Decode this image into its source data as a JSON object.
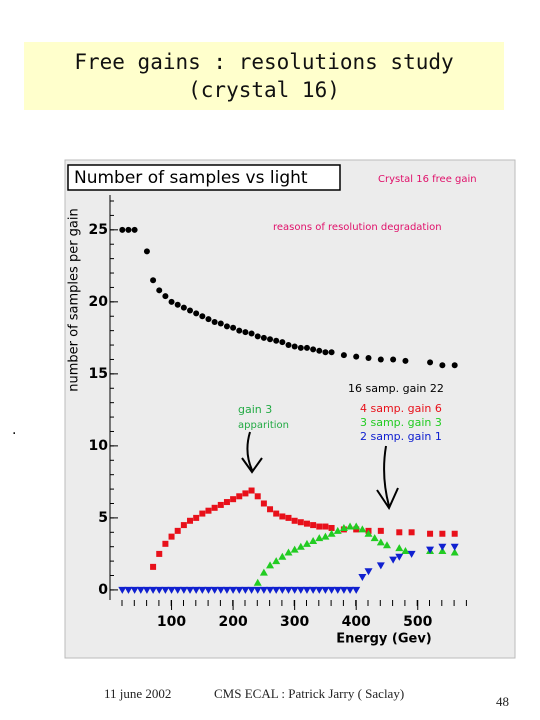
{
  "slide": {
    "title": [
      "Free gains : resolutions study",
      "(crystal 16)"
    ],
    "footer": {
      "date": "11 june 2002",
      "author": "CMS ECAL : Patrick Jarry ( Saclay)",
      "page": "48"
    }
  },
  "chart_data": {
    "type": "scatter",
    "title": "Number of samples vs light",
    "subtitle": "Crystal 16  free gain",
    "note": "reasons of resolution degradation",
    "annotations": [
      "gain 3",
      "apparition"
    ],
    "x_label": "Energy (Gev)",
    "y_label": "number of samples per gain",
    "xlim": [
      0,
      580
    ],
    "ylim": [
      -0.7,
      29.5
    ],
    "xticks": [
      100,
      200,
      300,
      400,
      500
    ],
    "yticks": [
      0,
      5,
      10,
      15,
      20,
      25
    ],
    "series": [
      {
        "name": "16  samp.  gain  22",
        "color": "#000000",
        "marker": "circle",
        "x": [
          20,
          30,
          40,
          60,
          70,
          80,
          90,
          100,
          110,
          120,
          130,
          140,
          150,
          160,
          170,
          180,
          190,
          200,
          210,
          220,
          230,
          240,
          250,
          260,
          270,
          280,
          290,
          300,
          310,
          320,
          330,
          340,
          350,
          360,
          380,
          400,
          420,
          440,
          460,
          480,
          520,
          540,
          560
        ],
        "values": [
          25,
          25,
          25,
          23.5,
          21.5,
          20.8,
          20.4,
          20.0,
          19.8,
          19.6,
          19.4,
          19.2,
          19.0,
          18.8,
          18.6,
          18.5,
          18.3,
          18.2,
          18.0,
          17.9,
          17.8,
          17.6,
          17.5,
          17.4,
          17.3,
          17.2,
          17.0,
          16.9,
          16.8,
          16.8,
          16.7,
          16.6,
          16.5,
          16.5,
          16.3,
          16.2,
          16.1,
          16.0,
          16.0,
          15.9,
          15.8,
          15.6,
          15.6
        ]
      },
      {
        "name": "4  samp.  gain  6",
        "color": "#e8101a",
        "marker": "square",
        "x": [
          70,
          80,
          90,
          100,
          110,
          120,
          130,
          140,
          150,
          160,
          170,
          180,
          190,
          200,
          210,
          220,
          230,
          240,
          250,
          260,
          270,
          280,
          290,
          300,
          310,
          320,
          330,
          340,
          350,
          360,
          380,
          400,
          420,
          440,
          470,
          490,
          520,
          540,
          560
        ],
        "values": [
          1.6,
          2.5,
          3.2,
          3.7,
          4.1,
          4.5,
          4.8,
          5.0,
          5.3,
          5.5,
          5.7,
          5.9,
          6.1,
          6.3,
          6.5,
          6.7,
          6.9,
          6.5,
          6.0,
          5.6,
          5.3,
          5.1,
          5.0,
          4.8,
          4.7,
          4.6,
          4.5,
          4.4,
          4.4,
          4.3,
          4.2,
          4.2,
          4.1,
          4.1,
          4.0,
          4.0,
          3.9,
          3.9,
          3.9
        ]
      },
      {
        "name": "3  samp.  gain  3",
        "color": "#22cc22",
        "marker": "triangle-up",
        "x": [
          240,
          250,
          260,
          270,
          280,
          290,
          300,
          310,
          320,
          330,
          340,
          350,
          360,
          370,
          380,
          390,
          400,
          410,
          420,
          430,
          440,
          450,
          470,
          480,
          520,
          540,
          560
        ],
        "values": [
          0.5,
          1.2,
          1.7,
          2.0,
          2.3,
          2.6,
          2.8,
          3.0,
          3.2,
          3.4,
          3.6,
          3.7,
          3.9,
          4.1,
          4.3,
          4.4,
          4.4,
          4.2,
          3.9,
          3.6,
          3.3,
          3.1,
          2.9,
          2.7,
          2.7,
          2.7,
          2.6
        ]
      },
      {
        "name": "2  samp.  gain  1",
        "color": "#1020d0",
        "marker": "triangle-down",
        "x": [
          20,
          30,
          40,
          50,
          60,
          70,
          80,
          90,
          100,
          110,
          120,
          130,
          140,
          150,
          160,
          170,
          180,
          190,
          200,
          210,
          220,
          230,
          240,
          250,
          260,
          270,
          280,
          290,
          300,
          310,
          320,
          330,
          340,
          350,
          360,
          370,
          380,
          390,
          400,
          410,
          420,
          440,
          460,
          470,
          490,
          520,
          540,
          560
        ],
        "values": [
          0,
          0,
          0,
          0,
          0,
          0,
          0,
          0,
          0,
          0,
          0,
          0,
          0,
          0,
          0,
          0,
          0,
          0,
          0,
          0,
          0,
          0,
          0,
          0,
          0,
          0,
          0,
          0,
          0,
          0,
          0,
          0,
          0,
          0,
          0,
          0,
          0,
          0,
          0,
          0.9,
          1.3,
          1.7,
          2.1,
          2.3,
          2.5,
          2.8,
          3.0,
          3.0
        ]
      }
    ]
  }
}
